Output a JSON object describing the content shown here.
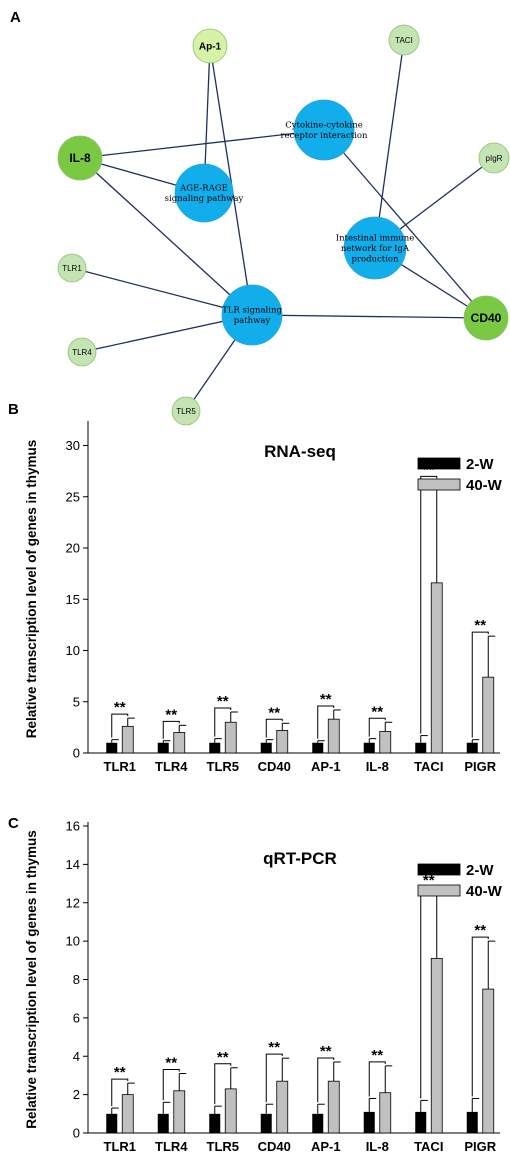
{
  "panels": {
    "a": "A",
    "b": "B",
    "c": "C"
  },
  "network": {
    "colors": {
      "edge": "#1f2f5e",
      "pathway": "#12aeeb",
      "gene_strong": "#7ac943",
      "gene_light": "#c5e4b3",
      "gene_pale": "#d6f2a6"
    },
    "nodes": [
      {
        "id": "ap1",
        "label": "Ap-1",
        "kind": "gene",
        "shade": "gene_pale"
      },
      {
        "id": "il8",
        "label": "IL-8",
        "kind": "gene",
        "shade": "gene_strong"
      },
      {
        "id": "taci",
        "label": "TACI",
        "kind": "gene",
        "shade": "gene_light"
      },
      {
        "id": "pigr",
        "label": "pIgR",
        "kind": "gene",
        "shade": "gene_light"
      },
      {
        "id": "tlr1",
        "label": "TLR1",
        "kind": "gene",
        "shade": "gene_light"
      },
      {
        "id": "tlr4",
        "label": "TLR4",
        "kind": "gene",
        "shade": "gene_light"
      },
      {
        "id": "tlr5",
        "label": "TLR5",
        "kind": "gene",
        "shade": "gene_light"
      },
      {
        "id": "cd40",
        "label": "CD40",
        "kind": "gene",
        "shade": "gene_strong"
      },
      {
        "id": "cytokine",
        "label": [
          "Cytokine-cytokine",
          "receptor interaction"
        ],
        "kind": "pathway"
      },
      {
        "id": "agerage",
        "label": [
          "AGE-RAGE",
          "signaling pathway"
        ],
        "kind": "pathway"
      },
      {
        "id": "intestinal",
        "label": [
          "Intestinal immune",
          "network for IgA",
          "production"
        ],
        "kind": "pathway"
      },
      {
        "id": "tlr",
        "label": [
          "TLR signaling",
          "pathway"
        ],
        "kind": "pathway"
      }
    ],
    "edges": [
      [
        "ap1",
        "agerage"
      ],
      [
        "ap1",
        "tlr"
      ],
      [
        "il8",
        "cytokine"
      ],
      [
        "il8",
        "agerage"
      ],
      [
        "il8",
        "tlr"
      ],
      [
        "tlr1",
        "tlr"
      ],
      [
        "tlr4",
        "tlr"
      ],
      [
        "tlr5",
        "tlr"
      ],
      [
        "taci",
        "intestinal"
      ],
      [
        "pigr",
        "intestinal"
      ],
      [
        "cd40",
        "cytokine"
      ],
      [
        "cd40",
        "tlr"
      ],
      [
        "cd40",
        "intestinal"
      ]
    ]
  },
  "chart_data": [
    {
      "type": "bar",
      "title": "RNA-seq",
      "ylabel": "Relative transcription level of genes in thymus",
      "xlabel": "",
      "ylim": [
        0,
        32
      ],
      "yticks": [
        0,
        5,
        10,
        15,
        20,
        25,
        30
      ],
      "categories": [
        "TLR1",
        "TLR4",
        "TLR5",
        "CD40",
        "AP-1",
        "IL-8",
        "TACI",
        "PIGR"
      ],
      "series": [
        {
          "name": "2-W",
          "color": "#000000",
          "values": [
            1.0,
            1.0,
            1.0,
            1.0,
            1.0,
            1.0,
            1.0,
            1.0
          ],
          "err": [
            0.3,
            0.2,
            0.4,
            0.3,
            0.2,
            0.4,
            0.7,
            0.3
          ]
        },
        {
          "name": "40-W",
          "color": "#c0c0c0",
          "values": [
            2.6,
            2.0,
            3.0,
            2.2,
            3.3,
            2.1,
            16.6,
            7.4
          ],
          "err": [
            0.8,
            0.7,
            1.0,
            0.7,
            0.9,
            0.9,
            10.0,
            4.0
          ]
        }
      ],
      "significance": [
        "**",
        "**",
        "**",
        "**",
        "**",
        "**",
        "**",
        "**"
      ],
      "legend": "top-right"
    },
    {
      "type": "bar",
      "title": "qRT-PCR",
      "ylabel": "Relative transcription level of genes in thymus",
      "xlabel": "",
      "ylim": [
        0,
        16
      ],
      "yticks": [
        0,
        2,
        4,
        6,
        8,
        10,
        12,
        14,
        16
      ],
      "categories": [
        "TLR1",
        "TLR4",
        "TLR5",
        "CD40",
        "AP-1",
        "IL-8",
        "TACI",
        "PIGR"
      ],
      "series": [
        {
          "name": "2-W",
          "color": "#000000",
          "values": [
            1.0,
            1.0,
            1.0,
            1.0,
            1.0,
            1.1,
            1.1,
            1.1
          ],
          "err": [
            0.3,
            0.6,
            0.4,
            0.5,
            0.5,
            0.7,
            0.6,
            0.7
          ]
        },
        {
          "name": "40-W",
          "color": "#c0c0c0",
          "values": [
            2.0,
            2.2,
            2.3,
            2.7,
            2.7,
            2.1,
            9.1,
            7.5
          ],
          "err": [
            0.6,
            0.9,
            1.1,
            1.2,
            1.0,
            1.4,
            3.5,
            2.5
          ]
        }
      ],
      "significance": [
        "**",
        "**",
        "**",
        "**",
        "**",
        "**",
        "**",
        "**"
      ],
      "legend": "top-right"
    }
  ]
}
